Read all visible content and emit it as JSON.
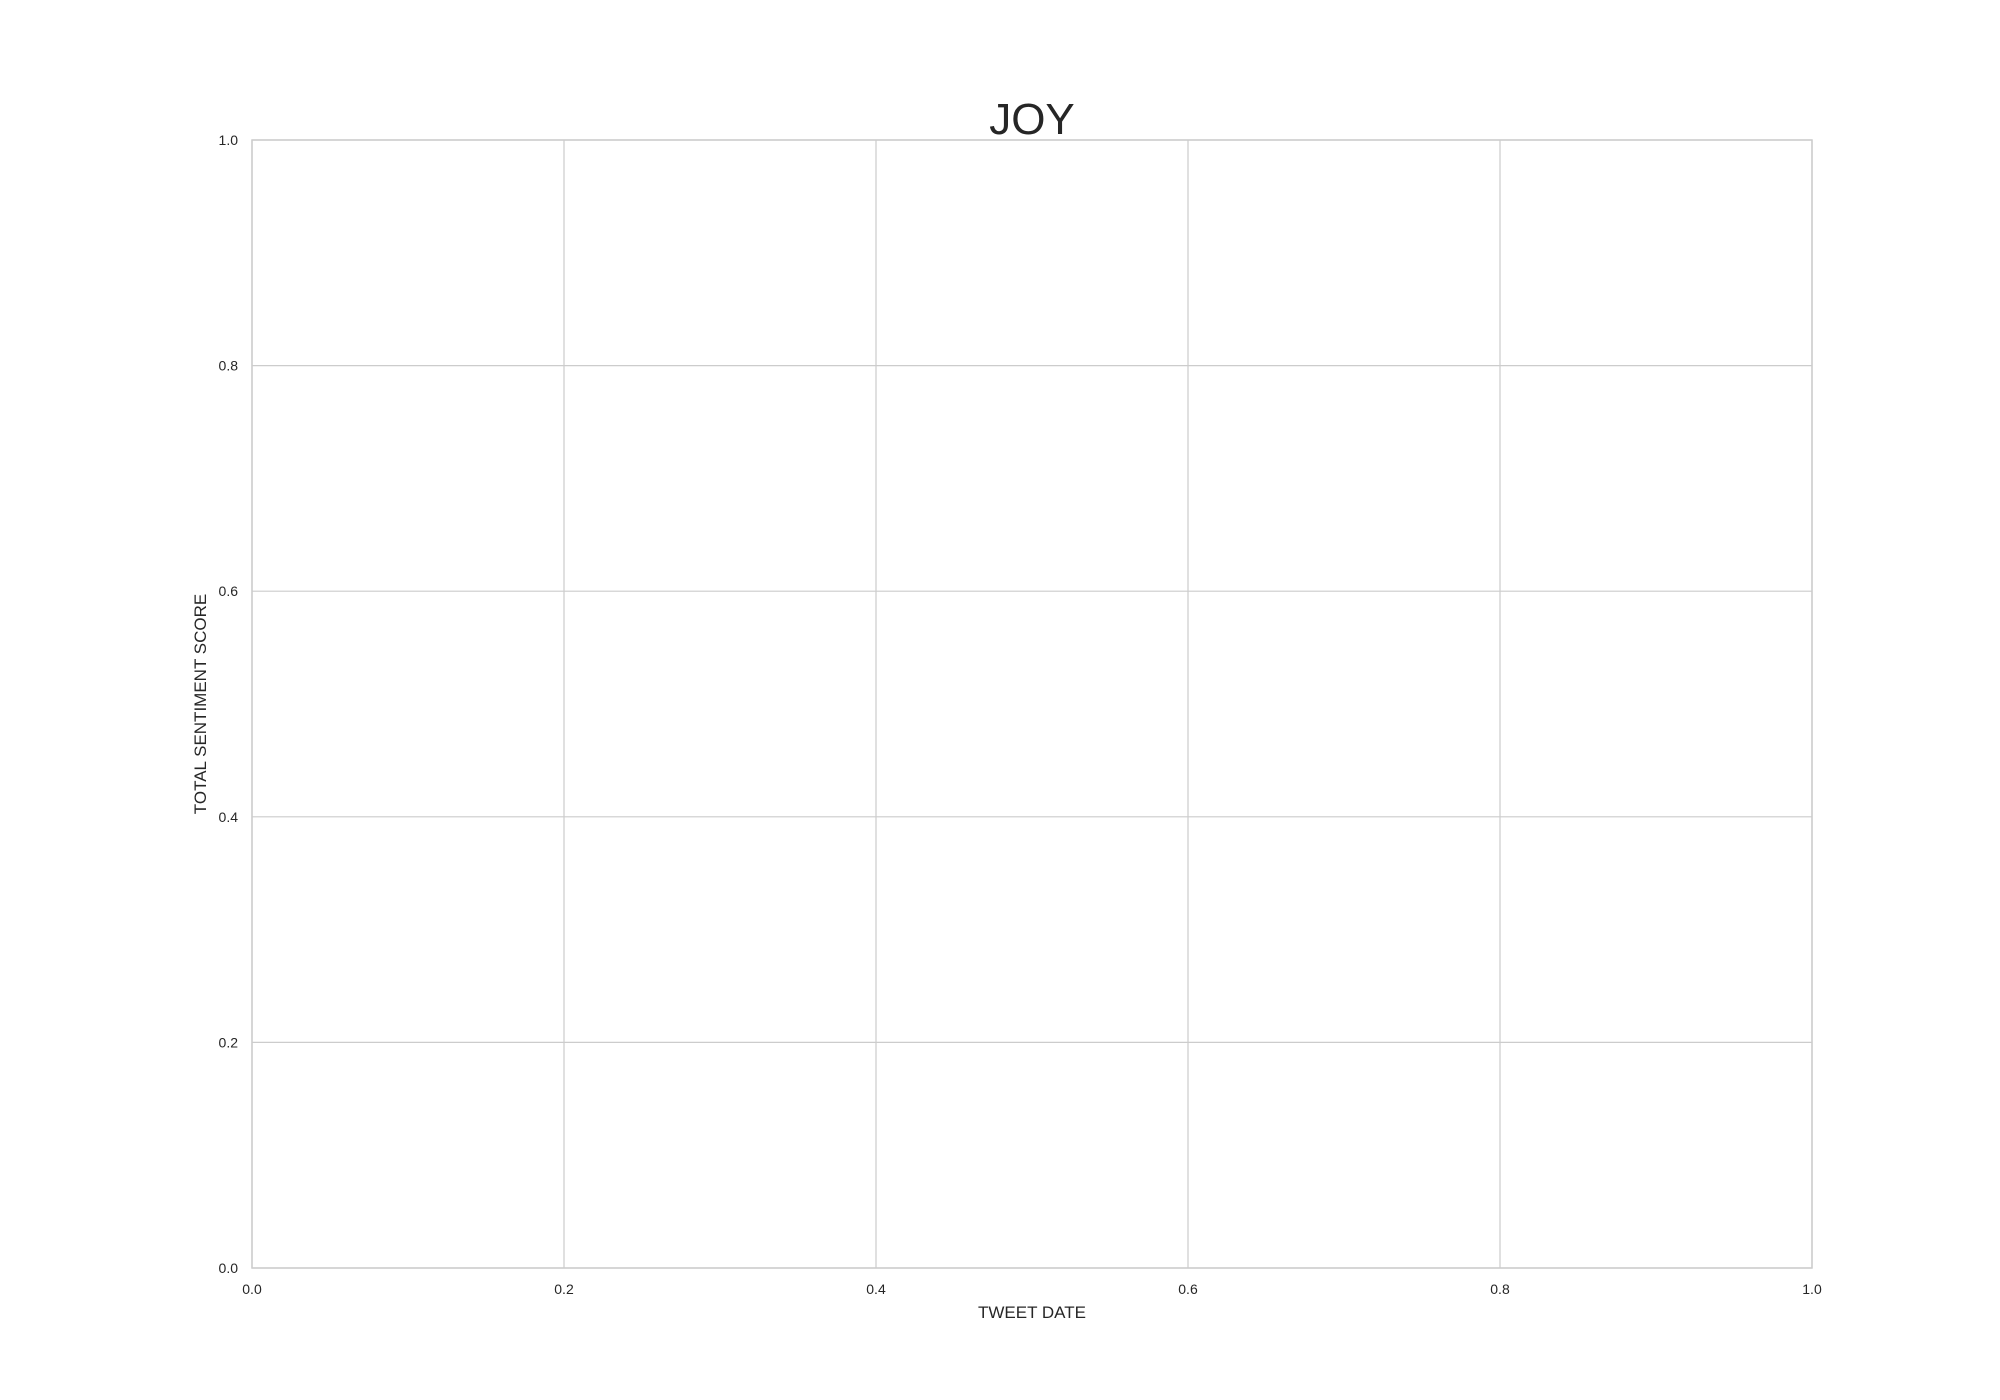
{
  "chart_data": {
    "type": "line",
    "title": "JOY",
    "xlabel": "TWEET DATE",
    "ylabel": "TOTAL SENTIMENT SCORE",
    "xlim": [
      0.0,
      1.0
    ],
    "ylim": [
      0.0,
      1.0
    ],
    "x_ticks": [
      "0.0",
      "0.2",
      "0.4",
      "0.6",
      "0.8",
      "1.0"
    ],
    "y_ticks": [
      "0.0",
      "0.2",
      "0.4",
      "0.6",
      "0.8",
      "1.0"
    ],
    "grid": true,
    "series": []
  }
}
